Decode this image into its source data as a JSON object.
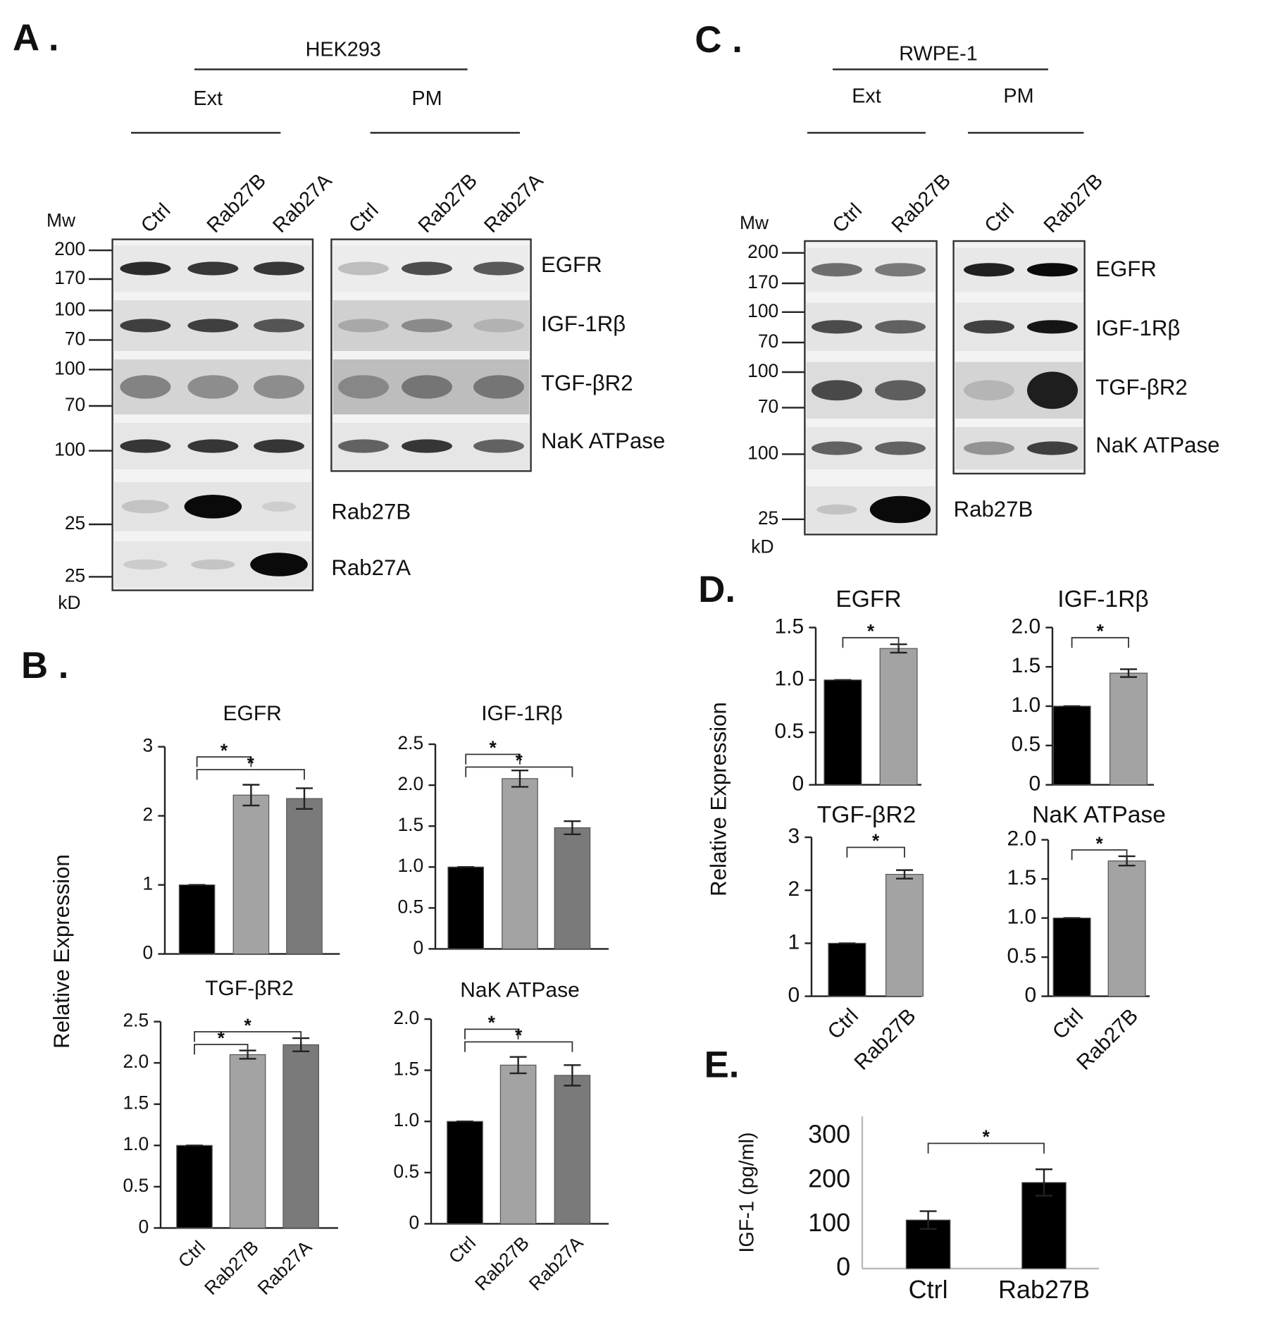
{
  "panel_labels": {
    "a": "A .",
    "b": "B .",
    "c": "C .",
    "d": "D.",
    "e": "E."
  },
  "blot_a": {
    "cell_line": "HEK293",
    "groups": [
      "Ext",
      "PM"
    ],
    "lanes_ext": [
      "Ctrl",
      "Rab27B",
      "Rab27A"
    ],
    "lanes_pm": [
      "Ctrl",
      "Rab27B",
      "Rab27A"
    ],
    "mw_title": "Mw",
    "mw_unit": "kD",
    "mw_markers": [
      200,
      170,
      100,
      70,
      100,
      70,
      100,
      25,
      25
    ],
    "proteins": [
      "EGFR",
      "IGF-1Rβ",
      "TGF-βR2",
      "NaK ATPase",
      "Rab27B",
      "Rab27A"
    ]
  },
  "blot_c": {
    "cell_line": "RWPE-1",
    "groups": [
      "Ext",
      "PM"
    ],
    "lanes_ext": [
      "Ctrl",
      "Rab27B"
    ],
    "lanes_pm": [
      "Ctrl",
      "Rab27B"
    ],
    "mw_title": "Mw",
    "mw_unit": "kD",
    "mw_markers": [
      200,
      170,
      100,
      70,
      100,
      70,
      100,
      25
    ],
    "proteins": [
      "EGFR",
      "IGF-1Rβ",
      "TGF-βR2",
      "NaK ATPase",
      "Rab27B"
    ]
  },
  "shared_labels": {
    "b_ylabel": "Relative Expression",
    "d_ylabel": "Relative Expression"
  },
  "chart_data": [
    {
      "type": "bar",
      "title": "EGFR",
      "categories": [
        null,
        null,
        null
      ],
      "values": [
        1,
        2.3,
        2.25
      ],
      "errors": [
        0,
        0.15,
        0.15
      ],
      "colors": [
        "#000000",
        "#a3a3a3",
        "#7a7a7a"
      ],
      "ylim": [
        0,
        3
      ],
      "yticks": [
        0,
        1,
        2,
        3
      ],
      "annotations": [
        {
          "text": "*",
          "pair": [
            0,
            1
          ]
        },
        {
          "text": "*",
          "pair": [
            0,
            2
          ]
        }
      ]
    },
    {
      "type": "bar",
      "title": "IGF-1Rβ",
      "categories": [
        null,
        null,
        null
      ],
      "values": [
        1,
        2.08,
        1.48
      ],
      "errors": [
        0,
        0.1,
        0.08
      ],
      "colors": [
        "#000000",
        "#a3a3a3",
        "#7a7a7a"
      ],
      "ylim": [
        0,
        2.5
      ],
      "yticks": [
        0,
        0.5,
        {
          "value": 1,
          "label": "1.0"
        },
        1.5,
        {
          "value": 2,
          "label": "2.0"
        },
        2.5
      ],
      "annotations": [
        {
          "text": "*",
          "pair": [
            0,
            1
          ]
        },
        {
          "text": "*",
          "pair": [
            0,
            2
          ]
        }
      ]
    },
    {
      "type": "bar",
      "title": "TGF-βR2",
      "categories": [
        "Ctrl",
        "Rab27B",
        "Rab27A"
      ],
      "values": [
        1,
        2.1,
        2.22
      ],
      "errors": [
        0,
        0.05,
        0.08
      ],
      "colors": [
        "#000000",
        "#a3a3a3",
        "#7a7a7a"
      ],
      "ylim": [
        0,
        2.5
      ],
      "yticks": [
        0,
        0.5,
        {
          "value": 1,
          "label": "1.0"
        },
        1.5,
        {
          "value": 2,
          "label": "2.0"
        },
        2.5
      ],
      "annotations": [
        {
          "text": "*",
          "pair": [
            0,
            2
          ]
        },
        {
          "text": "*",
          "pair": [
            0,
            1
          ]
        }
      ]
    },
    {
      "type": "bar",
      "title": "NaK ATPase",
      "categories": [
        "Ctrl",
        "Rab27B",
        "Rab27A"
      ],
      "values": [
        1,
        1.55,
        1.45
      ],
      "errors": [
        0,
        0.08,
        0.1
      ],
      "colors": [
        "#000000",
        "#a3a3a3",
        "#7a7a7a"
      ],
      "ylim": [
        0,
        2
      ],
      "yticks": [
        0,
        0.5,
        {
          "value": 1,
          "label": "1.0"
        },
        1.5,
        {
          "value": 2,
          "label": "2.0"
        }
      ],
      "annotations": [
        {
          "text": "*",
          "pair": [
            0,
            1
          ]
        },
        {
          "text": "*",
          "pair": [
            0,
            2
          ]
        }
      ]
    },
    {
      "type": "bar",
      "title": "EGFR",
      "categories": [
        null,
        null
      ],
      "values": [
        1,
        1.3
      ],
      "errors": [
        0,
        0.04
      ],
      "colors": [
        "#000000",
        "#a3a3a3"
      ],
      "ylim": [
        0,
        1.5
      ],
      "yticks": [
        0,
        0.5,
        {
          "value": 1,
          "label": "1.0"
        },
        1.5
      ],
      "annotations": [
        {
          "text": "*",
          "pair": [
            0,
            1
          ]
        }
      ]
    },
    {
      "type": "bar",
      "title": "IGF-1Rβ",
      "categories": [
        null,
        null
      ],
      "values": [
        1,
        1.42
      ],
      "errors": [
        0,
        0.05
      ],
      "colors": [
        "#000000",
        "#a3a3a3"
      ],
      "ylim": [
        0,
        2
      ],
      "yticks": [
        0,
        0.5,
        {
          "value": 1,
          "label": "1.0"
        },
        1.5,
        {
          "value": 2,
          "label": "2.0"
        }
      ],
      "annotations": [
        {
          "text": "*",
          "pair": [
            0,
            1
          ]
        }
      ]
    },
    {
      "type": "bar",
      "title": "TGF-βR2",
      "categories": [
        "Ctrl",
        "Rab27B"
      ],
      "values": [
        1,
        2.3
      ],
      "errors": [
        0,
        0.08
      ],
      "colors": [
        "#000000",
        "#a3a3a3"
      ],
      "ylim": [
        0,
        3
      ],
      "yticks": [
        0,
        1,
        2,
        3
      ],
      "annotations": [
        {
          "text": "*",
          "pair": [
            0,
            1
          ]
        }
      ]
    },
    {
      "type": "bar",
      "title": "NaK ATPase",
      "categories": [
        "Ctrl",
        "Rab27B"
      ],
      "values": [
        1,
        1.73
      ],
      "errors": [
        0,
        0.06
      ],
      "colors": [
        "#000000",
        "#a3a3a3"
      ],
      "ylim": [
        0,
        2
      ],
      "yticks": [
        0,
        0.5,
        {
          "value": 1,
          "label": "1.0"
        },
        1.5,
        {
          "value": 2,
          "label": "2.0"
        }
      ],
      "annotations": [
        {
          "text": "*",
          "pair": [
            0,
            1
          ]
        }
      ]
    },
    {
      "type": "bar",
      "ylabel": "IGF-1 (pg/ml)",
      "categories": [
        "Ctrl",
        "Rab27B"
      ],
      "values": [
        110,
        195
      ],
      "errors": [
        20,
        30
      ],
      "colors": [
        "#000000",
        "#000000"
      ],
      "ylim": [
        0,
        345
      ],
      "yticks": [
        0,
        100,
        200,
        300
      ],
      "annotations": [
        {
          "text": "*",
          "pair": [
            0,
            1
          ]
        }
      ]
    }
  ]
}
